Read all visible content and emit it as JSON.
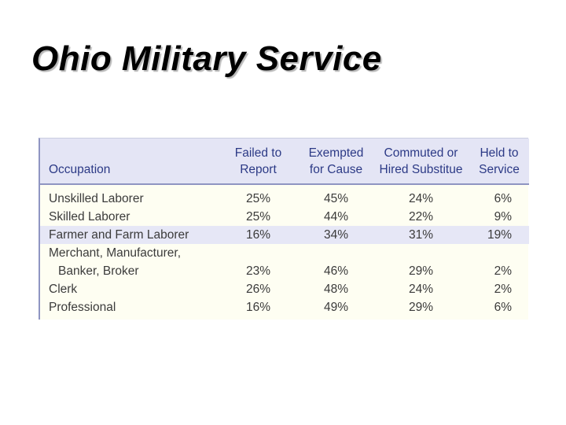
{
  "title": "Ohio Military Service",
  "table": {
    "headers": {
      "occupation": "Occupation",
      "failed": [
        "Failed to",
        "Report"
      ],
      "exempted": [
        "Exempted",
        "for Cause"
      ],
      "commuted": [
        "Commuted or",
        "Hired Substitue"
      ],
      "held": [
        "Held to",
        "Service"
      ]
    },
    "rows": [
      {
        "occupation": [
          "Unskilled Laborer"
        ],
        "failed": "25%",
        "exempted": "45%",
        "commuted": "24%",
        "held": "6%"
      },
      {
        "occupation": [
          "Skilled Laborer"
        ],
        "failed": "25%",
        "exempted": "44%",
        "commuted": "22%",
        "held": "9%"
      },
      {
        "occupation": [
          "Farmer and Farm Laborer"
        ],
        "failed": "16%",
        "exempted": "34%",
        "commuted": "31%",
        "held": "19%"
      },
      {
        "occupation": [
          "Merchant, Manufacturer,",
          "Banker, Broker"
        ],
        "failed": "23%",
        "exempted": "46%",
        "commuted": "29%",
        "held": "2%"
      },
      {
        "occupation": [
          "Clerk"
        ],
        "failed": "26%",
        "exempted": "48%",
        "commuted": "24%",
        "held": "2%"
      },
      {
        "occupation": [
          "Professional"
        ],
        "failed": "16%",
        "exempted": "49%",
        "commuted": "29%",
        "held": "6%"
      }
    ]
  },
  "colors": {
    "header_bg": "#e4e5f5",
    "header_text": "#2c3a86",
    "body_bg": "#fefef2",
    "highlight_row": "#e6e7f6",
    "rule": "#8f95c2"
  }
}
